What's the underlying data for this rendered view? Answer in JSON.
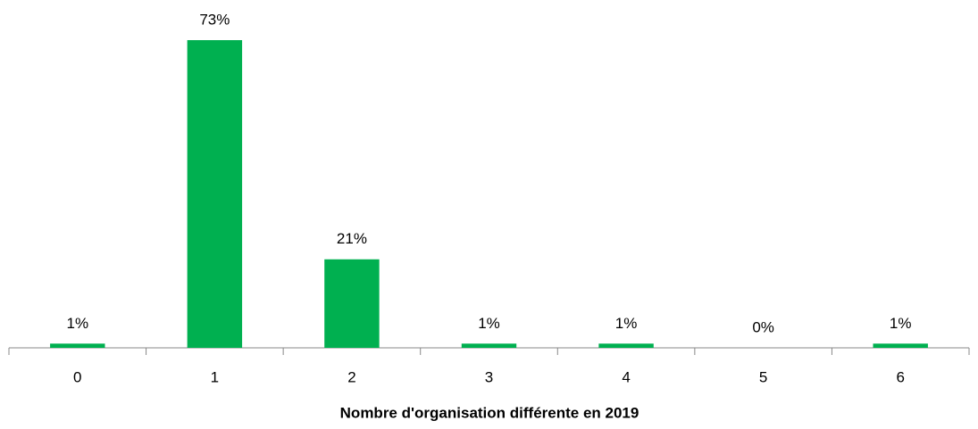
{
  "chart_data": {
    "type": "bar",
    "x_label": "Nombre d'organisation différente en 2019",
    "categories": [
      "0",
      "1",
      "2",
      "3",
      "4",
      "5",
      "6"
    ],
    "values": [
      1,
      73,
      21,
      1,
      1,
      0,
      1
    ],
    "value_labels": [
      "1%",
      "73%",
      "21%",
      "1%",
      "1%",
      "0%",
      "1%"
    ],
    "color": "#00b050"
  }
}
